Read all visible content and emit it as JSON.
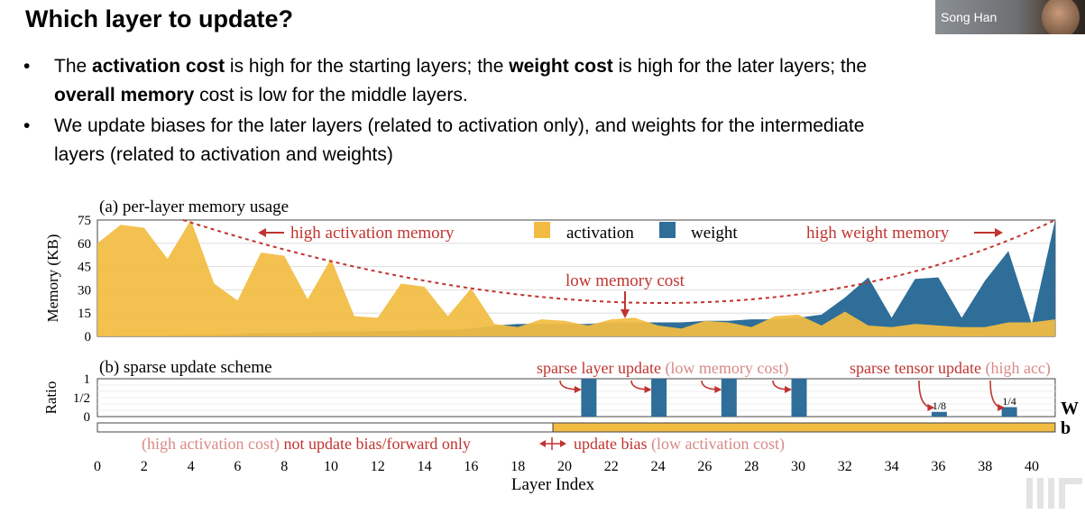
{
  "slide": {
    "title": "Which layer to update?",
    "speaker_label": "Song Han",
    "bullets": [
      {
        "line1": [
          {
            "t": "The ",
            "b": false
          },
          {
            "t": "activation cost",
            "b": true
          },
          {
            "t": " is high for the starting layers; the ",
            "b": false
          },
          {
            "t": "weight cost",
            "b": true
          },
          {
            "t": " is high for the later layers; the",
            "b": false
          }
        ],
        "line2": [
          {
            "t": "overall memory",
            "b": true
          },
          {
            "t": " cost is low for the middle layers.",
            "b": false
          }
        ]
      },
      {
        "line1": [
          {
            "t": "We update biases for the later layers (related to activation only), and weights for the intermediate",
            "b": false
          }
        ],
        "line2": [
          {
            "t": "layers (related to activation and weights)",
            "b": false
          }
        ]
      }
    ]
  },
  "chart_data": {
    "type": "area",
    "panel_a_title": "(a) per-layer memory usage",
    "panel_b_title": "(b) sparse update scheme",
    "xlabel": "Layer Index",
    "x_ticks": [
      "0",
      "2",
      "4",
      "6",
      "8",
      "10",
      "12",
      "14",
      "16",
      "18",
      "20",
      "22",
      "24",
      "26",
      "28",
      "30",
      "32",
      "34",
      "36",
      "38",
      "40"
    ],
    "ylabel_a": "Memory (KB)",
    "ylim_a": [
      0,
      75
    ],
    "y_ticks_a": [
      "0",
      "15",
      "30",
      "45",
      "60",
      "75"
    ],
    "ylabel_b": "Ratio",
    "y_ticks_b": [
      "0",
      "1/2",
      "1"
    ],
    "x": [
      0,
      1,
      2,
      3,
      4,
      5,
      6,
      7,
      8,
      9,
      10,
      11,
      12,
      13,
      14,
      15,
      16,
      17,
      18,
      19,
      20,
      21,
      22,
      23,
      24,
      25,
      26,
      27,
      28,
      29,
      30,
      31,
      32,
      33,
      34,
      35,
      36,
      37,
      38,
      39,
      40,
      41
    ],
    "series": [
      {
        "name": "weight",
        "color": "#2e6e99",
        "values": [
          0,
          0.5,
          0.5,
          0.5,
          1,
          1,
          1.5,
          2,
          2,
          2.5,
          3,
          3,
          3.5,
          3.5,
          4,
          4,
          5,
          7,
          8,
          8,
          8,
          8,
          9,
          9,
          9,
          9,
          10,
          10,
          11,
          11,
          12,
          14,
          25,
          38,
          12,
          37,
          38,
          12,
          36,
          55,
          8,
          78
        ]
      },
      {
        "name": "activation",
        "color": "#f2bc42",
        "values": [
          60,
          72,
          70,
          50,
          76,
          34,
          23,
          54,
          52,
          24,
          50,
          13,
          12,
          34,
          32,
          13,
          31,
          8,
          6,
          11,
          10,
          7,
          11,
          12,
          7,
          5,
          10,
          9,
          6,
          13,
          14,
          7,
          16,
          7,
          6,
          8,
          7,
          6,
          6,
          9,
          9,
          11
        ]
      }
    ],
    "legend": {
      "position": "top-center",
      "items": [
        "activation",
        "weight"
      ]
    },
    "annotations": {
      "high_activation": "high activation memory",
      "low_memory": "low memory cost",
      "high_weight": "high weight memory",
      "sparse_layer_a": "sparse layer update",
      "sparse_layer_b": "(low memory cost)",
      "sparse_tensor_a": "sparse tensor update",
      "sparse_tensor_b": "(high acc)",
      "frac_1_8": "1/8",
      "frac_1_4": "1/4",
      "bias_low_a": "(high activation cost)",
      "bias_low_b": "not update bias/forward only",
      "bias_high_a": "update bias",
      "bias_high_b": "(low activation cost)",
      "row_w": "W",
      "row_b": "b"
    },
    "sparse_weight_update": {
      "layers": [
        21,
        24,
        27,
        30,
        36,
        39
      ],
      "ratios": [
        1,
        1,
        1,
        1,
        0.125,
        0.25
      ]
    },
    "bias_update_from_layer": 19.5,
    "annotation_color": "#c0342f",
    "faded_color": "#d88a86"
  }
}
